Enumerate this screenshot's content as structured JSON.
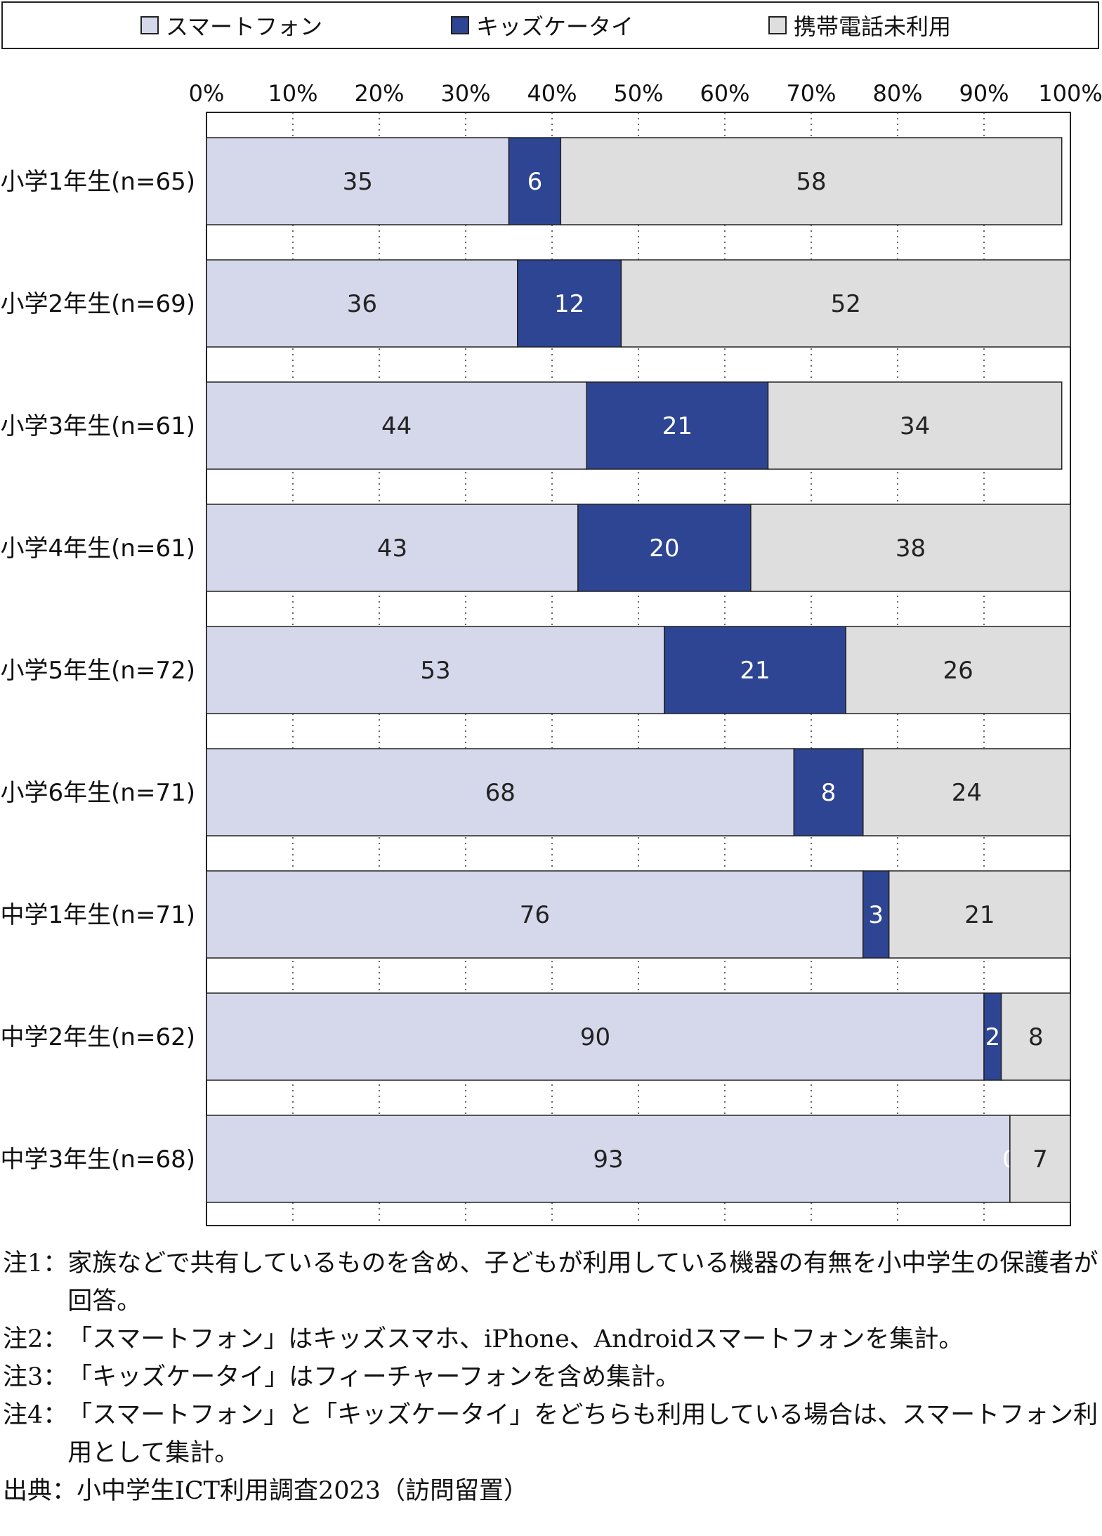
{
  "chart_data": {
    "type": "bar",
    "orientation": "horizontal",
    "stacked": true,
    "percent_axis_ticks": [
      "0%",
      "10%",
      "20%",
      "30%",
      "40%",
      "50%",
      "60%",
      "70%",
      "80%",
      "90%",
      "100%"
    ],
    "xlim": [
      0,
      100
    ],
    "grid": "vertical dotted",
    "legend_position": "top",
    "categories": [
      "小学1年生(n=65)",
      "小学2年生(n=69)",
      "小学3年生(n=61)",
      "小学4年生(n=61)",
      "小学5年生(n=72)",
      "小学6年生(n=71)",
      "中学1年生(n=71)",
      "中学2年生(n=62)",
      "中学3年生(n=68)"
    ],
    "series": [
      {
        "name": "スマートフォン",
        "color": "#d5d8ea",
        "label_color": "#222222",
        "values": [
          35,
          36,
          44,
          43,
          53,
          68,
          76,
          90,
          93
        ]
      },
      {
        "name": "キッズケータイ",
        "color": "#2d4593",
        "label_color": "#ffffff",
        "values": [
          6,
          12,
          21,
          20,
          21,
          8,
          3,
          2,
          0
        ]
      },
      {
        "name": "携帯電話未利用",
        "color": "#dedede",
        "label_color": "#222222",
        "values": [
          58,
          52,
          34,
          38,
          26,
          24,
          21,
          8,
          7
        ]
      }
    ]
  },
  "notes": [
    {
      "key": "注1：",
      "text": "家族などで共有しているものを含め、子どもが利用している機器の有無を小中学生の保護者が回答。"
    },
    {
      "key": "注2：",
      "text": "「スマートフォン」はキッズスマホ、iPhone、Androidスマートフォンを集計。"
    },
    {
      "key": "注3：",
      "text": "「キッズケータイ」はフィーチャーフォンを含め集計。"
    },
    {
      "key": "注4：",
      "text": "「スマートフォン」と「キッズケータイ」をどちらも利用している場合は、スマートフォン利用として集計。"
    },
    {
      "key": "出典：",
      "text": "小中学生ICT利用調査2023（訪問留置）"
    }
  ]
}
